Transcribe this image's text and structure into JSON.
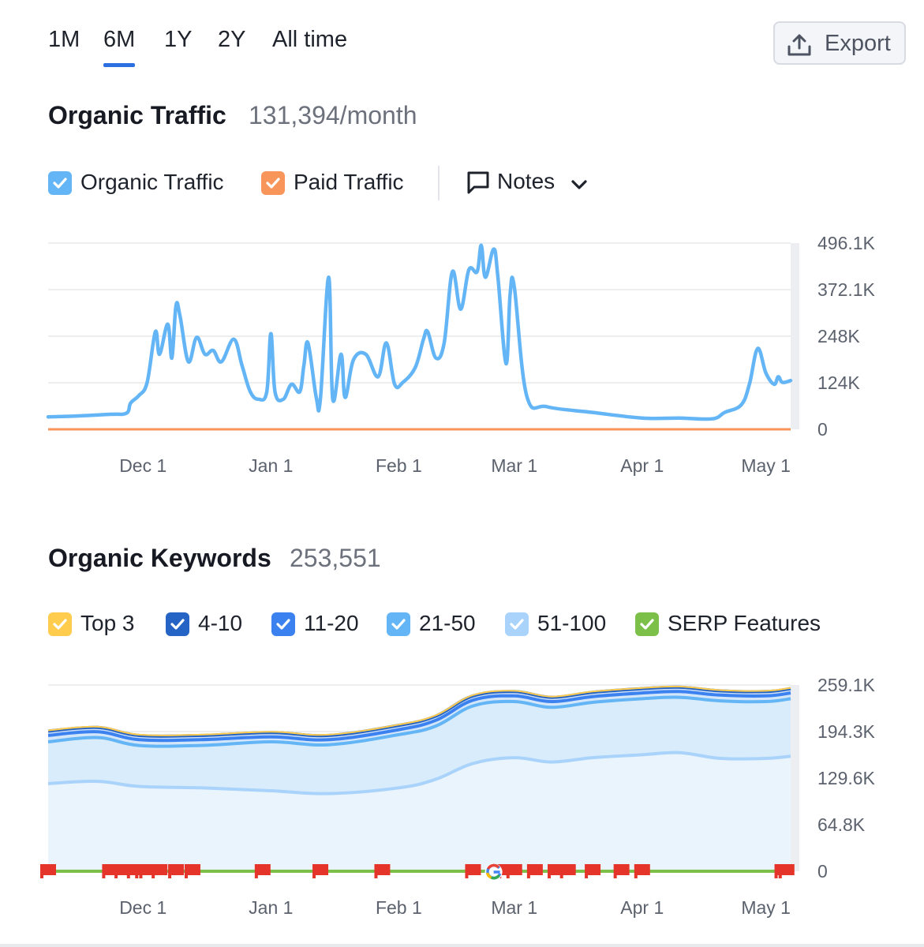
{
  "period_tabs": [
    {
      "label": "1M",
      "active": false
    },
    {
      "label": "6M",
      "active": true
    },
    {
      "label": "1Y",
      "active": false
    },
    {
      "label": "2Y",
      "active": false
    },
    {
      "label": "All time",
      "active": false
    }
  ],
  "export_label": "Export",
  "traffic": {
    "title": "Organic Traffic",
    "value": "131,394/month",
    "legend": [
      {
        "label": "Organic Traffic",
        "color": "#64b5f6",
        "checked": true
      },
      {
        "label": "Paid Traffic",
        "color": "#f7955a",
        "checked": true
      }
    ],
    "notes_label": "Notes"
  },
  "keywords": {
    "title": "Organic Keywords",
    "value": "253,551",
    "legend": [
      {
        "label": "Top 3",
        "color": "#ffcc4d",
        "checked": true
      },
      {
        "label": "4-10",
        "color": "#2563c4",
        "checked": true
      },
      {
        "label": "11-20",
        "color": "#3b82f0",
        "checked": true
      },
      {
        "label": "21-50",
        "color": "#64b5f6",
        "checked": true
      },
      {
        "label": "51-100",
        "color": "#a9d3fb",
        "checked": true
      },
      {
        "label": "SERP Features",
        "color": "#7cc04a",
        "checked": true
      }
    ]
  },
  "chart_data": [
    {
      "type": "line",
      "title": "Organic Traffic",
      "x_ticks": [
        "Dec 1",
        "Jan 1",
        "Feb 1",
        "Mar 1",
        "Apr 1",
        "May 1"
      ],
      "y_ticks": [
        "496.1K",
        "372.1K",
        "248K",
        "124K",
        "0"
      ],
      "ylim": [
        0,
        496100
      ],
      "x_range": [
        "Nov 8",
        "May 7"
      ],
      "grid": true,
      "series": [
        {
          "name": "Organic Traffic",
          "color": "#64b5f6",
          "points": [
            [
              "Nov 8",
              33000
            ],
            [
              "Nov 14",
              35000
            ],
            [
              "Nov 23",
              40000
            ],
            [
              "Nov 27",
              43000
            ],
            [
              "Nov 28",
              70000
            ],
            [
              "Nov 30",
              90000
            ],
            [
              "Dec 2",
              125000
            ],
            [
              "Dec 4",
              260000
            ],
            [
              "Dec 5",
              200000
            ],
            [
              "Dec 7",
              280000
            ],
            [
              "Dec 8",
              190000
            ],
            [
              "Dec 9",
              330000
            ],
            [
              "Dec 10",
              300000
            ],
            [
              "Dec 12",
              180000
            ],
            [
              "Dec 14",
              245000
            ],
            [
              "Dec 16",
              200000
            ],
            [
              "Dec 18",
              210000
            ],
            [
              "Dec 20",
              180000
            ],
            [
              "Dec 23",
              240000
            ],
            [
              "Dec 25",
              170000
            ],
            [
              "Dec 27",
              100000
            ],
            [
              "Dec 29",
              80000
            ],
            [
              "Dec 31",
              100000
            ],
            [
              "Jan 1",
              255000
            ],
            [
              "Jan 2",
              100000
            ],
            [
              "Jan 4",
              80000
            ],
            [
              "Jan 6",
              120000
            ],
            [
              "Jan 8",
              100000
            ],
            [
              "Jan 9",
              170000
            ],
            [
              "Jan 10",
              230000
            ],
            [
              "Jan 12",
              85000
            ],
            [
              "Jan 13",
              80000
            ],
            [
              "Jan 15",
              405000
            ],
            [
              "Jan 16",
              80000
            ],
            [
              "Jan 18",
              200000
            ],
            [
              "Jan 19",
              85000
            ],
            [
              "Jan 21",
              185000
            ],
            [
              "Jan 24",
              200000
            ],
            [
              "Jan 27",
              140000
            ],
            [
              "Jan 29",
              230000
            ],
            [
              "Jan 31",
              120000
            ],
            [
              "Feb 2",
              125000
            ],
            [
              "Feb 5",
              165000
            ],
            [
              "Feb 7",
              240000
            ],
            [
              "Feb 8",
              260000
            ],
            [
              "Feb 10",
              190000
            ],
            [
              "Feb 12",
              230000
            ],
            [
              "Feb 14",
              420000
            ],
            [
              "Feb 16",
              320000
            ],
            [
              "Feb 18",
              425000
            ],
            [
              "Feb 20",
              420000
            ],
            [
              "Feb 21",
              490000
            ],
            [
              "Feb 22",
              405000
            ],
            [
              "Feb 24",
              480000
            ],
            [
              "Feb 25",
              410000
            ],
            [
              "Feb 27",
              175000
            ],
            [
              "Feb 28",
              360000
            ],
            [
              "Mar 1",
              380000
            ],
            [
              "Mar 4",
              90000
            ],
            [
              "Mar 9",
              60000
            ],
            [
              "Mar 20",
              45000
            ],
            [
              "Apr 1",
              30000
            ],
            [
              "Apr 10",
              30000
            ],
            [
              "Apr 18",
              28000
            ],
            [
              "Apr 21",
              45000
            ],
            [
              "Apr 25",
              65000
            ],
            [
              "Apr 27",
              120000
            ],
            [
              "Apr 29",
              215000
            ],
            [
              "May 1",
              150000
            ],
            [
              "May 3",
              120000
            ],
            [
              "May 4",
              140000
            ],
            [
              "May 5",
              125000
            ],
            [
              "May 7",
              130000
            ]
          ]
        },
        {
          "name": "Paid Traffic",
          "color": "#f7955a",
          "points": [
            [
              "Nov 8",
              0
            ],
            [
              "May 7",
              0
            ]
          ]
        }
      ]
    },
    {
      "type": "area",
      "title": "Organic Keywords",
      "x_ticks": [
        "Dec 1",
        "Jan 1",
        "Feb 1",
        "Mar 1",
        "Apr 1",
        "May 1"
      ],
      "y_ticks": [
        "259.1K",
        "194.3K",
        "129.6K",
        "64.8K",
        "0"
      ],
      "ylim": [
        0,
        259100
      ],
      "x_range": [
        "Nov 8",
        "May 7"
      ],
      "grid": true,
      "stacked": true,
      "x": [
        "Nov 8",
        "Nov 20",
        "Nov 30",
        "Dec 15",
        "Jan 1",
        "Jan 15",
        "Feb 1",
        "Feb 10",
        "Feb 19",
        "Mar 1",
        "Mar 10",
        "Mar 20",
        "Apr 1",
        "Apr 10",
        "Apr 20",
        "May 1",
        "May 7"
      ],
      "series": [
        {
          "name": "51-100",
          "color": "#a9d3fb",
          "cumulative": [
            122000,
            125000,
            118000,
            116000,
            112000,
            108000,
            116000,
            128000,
            150000,
            158000,
            152000,
            158000,
            162000,
            165000,
            157000,
            157000,
            160000
          ]
        },
        {
          "name": "21-50",
          "color": "#64b5f6",
          "cumulative": [
            180000,
            186000,
            175000,
            175000,
            180000,
            176000,
            190000,
            202000,
            230000,
            236000,
            228000,
            235000,
            240000,
            242000,
            237000,
            236000,
            240000
          ]
        },
        {
          "name": "11-20",
          "color": "#3b82f0",
          "cumulative": [
            189000,
            194000,
            183000,
            183000,
            187000,
            183000,
            197000,
            210000,
            238000,
            244000,
            236000,
            243000,
            248000,
            250000,
            245000,
            244000,
            248000
          ]
        },
        {
          "name": "4-10",
          "color": "#2563c4",
          "cumulative": [
            195000,
            200000,
            189000,
            189000,
            193000,
            189000,
            203000,
            216000,
            244000,
            250000,
            242000,
            249000,
            254000,
            256000,
            251000,
            250000,
            254000
          ]
        },
        {
          "name": "Top 3",
          "color": "#ffcc4d",
          "cumulative": [
            196000,
            201000,
            190000,
            190000,
            194000,
            190000,
            204000,
            217000,
            245000,
            251000,
            243000,
            250000,
            255000,
            257000,
            252000,
            251000,
            255000
          ]
        }
      ],
      "serp_features": {
        "name": "SERP Features",
        "color": "#7cc04a",
        "value": 0
      },
      "annotations": {
        "flag_dates": [
          "Nov 8",
          "Nov 23",
          "Nov 26",
          "Nov 29",
          "Dec 1",
          "Dec 2",
          "Dec 5",
          "Dec 9",
          "Dec 13",
          "Dec 30",
          "Jan 13",
          "Jan 28",
          "Feb 19",
          "Feb 25",
          "Feb 27",
          "Mar 1",
          "Mar 6",
          "Mar 11",
          "Mar 14",
          "Mar 20",
          "Mar 27",
          "Apr 1",
          "May 5",
          "May 6"
        ],
        "google_update_date": "Feb 24"
      }
    }
  ]
}
